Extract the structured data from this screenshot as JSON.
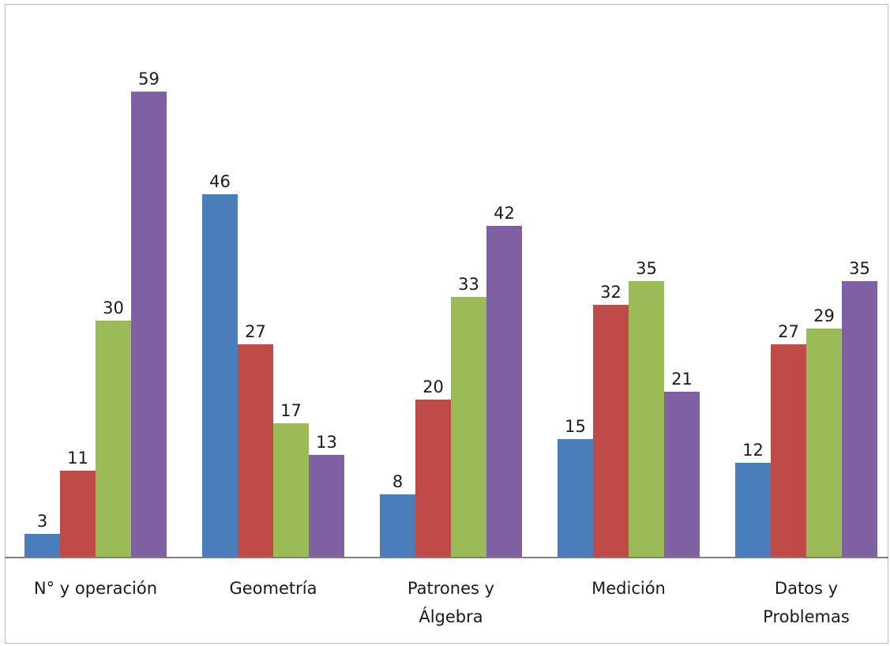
{
  "chart_data": {
    "type": "bar",
    "categories": [
      [
        "N° y operación"
      ],
      [
        "Geometría"
      ],
      [
        "Patrones y",
        "Álgebra"
      ],
      [
        "Medición"
      ],
      [
        "Datos y",
        "Problemas"
      ]
    ],
    "series": [
      {
        "color": "#4a7ebb",
        "values": [
          3,
          46,
          8,
          15,
          12
        ]
      },
      {
        "color": "#be4b48",
        "values": [
          11,
          27,
          20,
          32,
          27
        ]
      },
      {
        "color": "#9bbb59",
        "values": [
          30,
          17,
          33,
          35,
          29
        ]
      },
      {
        "color": "#7f60a2",
        "values": [
          59,
          13,
          42,
          21,
          35
        ]
      }
    ],
    "title": "",
    "xlabel": "",
    "ylabel": "",
    "ylim": [
      0,
      65
    ],
    "grid": false,
    "legend": "none",
    "data_labels": true
  }
}
